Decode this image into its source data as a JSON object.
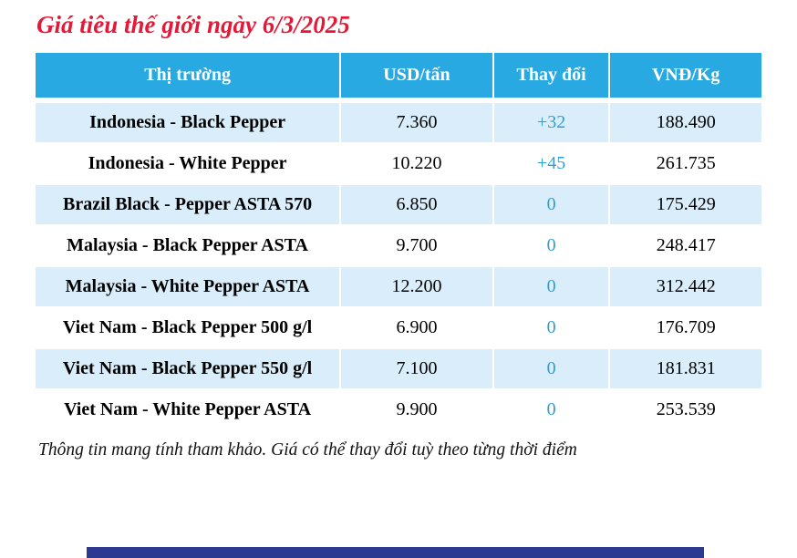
{
  "page": {
    "title": "Giá tiêu thế giới ngày 6/3/2025",
    "footnote": "Thông tin mang tính tham khảo. Giá có thể thay đổi tuỳ theo từng thời điểm"
  },
  "table": {
    "columns": [
      "Thị trường",
      "USD/tấn",
      "Thay đổi",
      "VNĐ/Kg"
    ],
    "rows": [
      {
        "market": "Indonesia - Black Pepper",
        "usd": "7.360",
        "change": "+32",
        "vnd": "188.490"
      },
      {
        "market": "Indonesia - White Pepper",
        "usd": "10.220",
        "change": "+45",
        "vnd": "261.735"
      },
      {
        "market": "Brazil Black - Pepper ASTA 570",
        "usd": "6.850",
        "change": "0",
        "vnd": "175.429"
      },
      {
        "market": "Malaysia - Black Pepper ASTA",
        "usd": "9.700",
        "change": "0",
        "vnd": "248.417"
      },
      {
        "market": "Malaysia - White Pepper ASTA",
        "usd": "12.200",
        "change": "0",
        "vnd": "312.442"
      },
      {
        "market": "Viet Nam - Black Pepper 500 g/l",
        "usd": "6.900",
        "change": "0",
        "vnd": "176.709"
      },
      {
        "market": "Viet Nam - Black Pepper 550 g/l",
        "usd": "7.100",
        "change": "0",
        "vnd": "181.831"
      },
      {
        "market": "Viet Nam - White Pepper ASTA",
        "usd": "9.900",
        "change": "0",
        "vnd": "253.539"
      }
    ]
  },
  "colors": {
    "header_bg": "#29a9e1",
    "row_alt_bg": "#d9eefa",
    "change_text": "#2e9fd4",
    "title_red": "#e51937",
    "bottom_bar": "#2b3990"
  }
}
